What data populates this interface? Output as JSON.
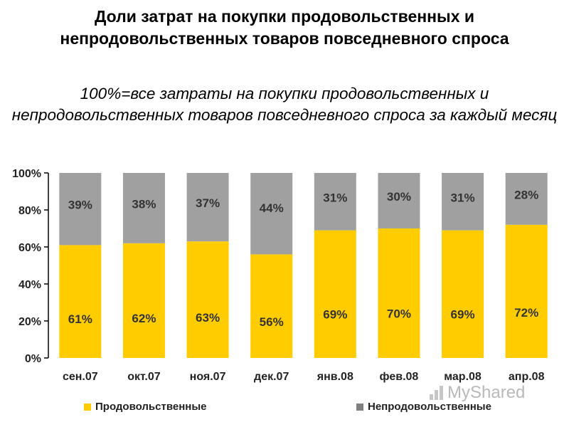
{
  "title": "Доли затрат на покупки продовольственных и непродовольственных товаров повседневного спроса",
  "subtitle": "100%=все затраты на покупки продовольственных и непродовольственных товаров повседневного спроса за каждый месяц",
  "watermark": "MyShared",
  "chart_data": {
    "type": "bar",
    "stacked": true,
    "categories": [
      "сен.07",
      "окт.07",
      "ноя.07",
      "дек.07",
      "янв.08",
      "фев.08",
      "мар.08",
      "апр.08"
    ],
    "series": [
      {
        "name": "Продовольственные",
        "color": "#FFCC00",
        "values": [
          61,
          62,
          63,
          56,
          69,
          70,
          69,
          72
        ],
        "labels": [
          "61%",
          "62%",
          "63%",
          "56%",
          "69%",
          "70%",
          "69%",
          "72%"
        ]
      },
      {
        "name": "Непродовольственные",
        "color": "#A0A0A0",
        "values": [
          39,
          38,
          37,
          44,
          31,
          30,
          31,
          28
        ],
        "labels": [
          "39%",
          "38%",
          "37%",
          "44%",
          "31%",
          "30%",
          "31%",
          "28%"
        ]
      }
    ],
    "yticks": [
      "0%",
      "20%",
      "40%",
      "60%",
      "80%",
      "100%"
    ],
    "ylim": [
      0,
      100
    ],
    "legend_position": "bottom",
    "grid": false
  }
}
